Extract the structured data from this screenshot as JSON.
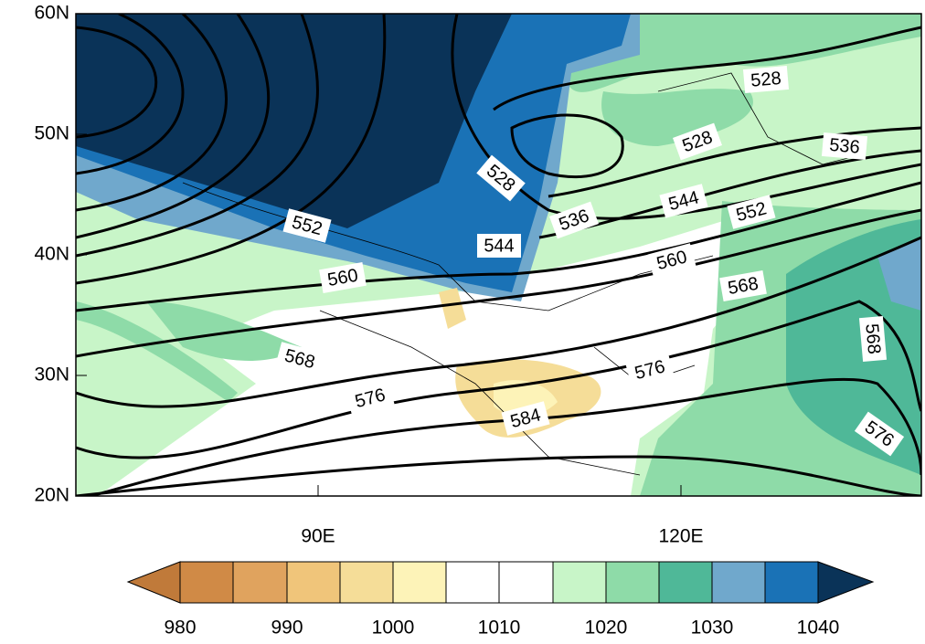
{
  "axes": {
    "y_labels": [
      "60N",
      "50N",
      "40N",
      "30N",
      "20N"
    ],
    "x_labels": [
      "90E",
      "120E"
    ]
  },
  "contour_labels": [
    "528",
    "528",
    "528",
    "536",
    "536",
    "544",
    "544",
    "552",
    "552",
    "560",
    "560",
    "568",
    "568",
    "568",
    "576",
    "576",
    "576",
    "584"
  ],
  "colorbar": {
    "labels": [
      "980",
      "990",
      "1000",
      "1010",
      "1020",
      "1030",
      "1040"
    ]
  }
}
